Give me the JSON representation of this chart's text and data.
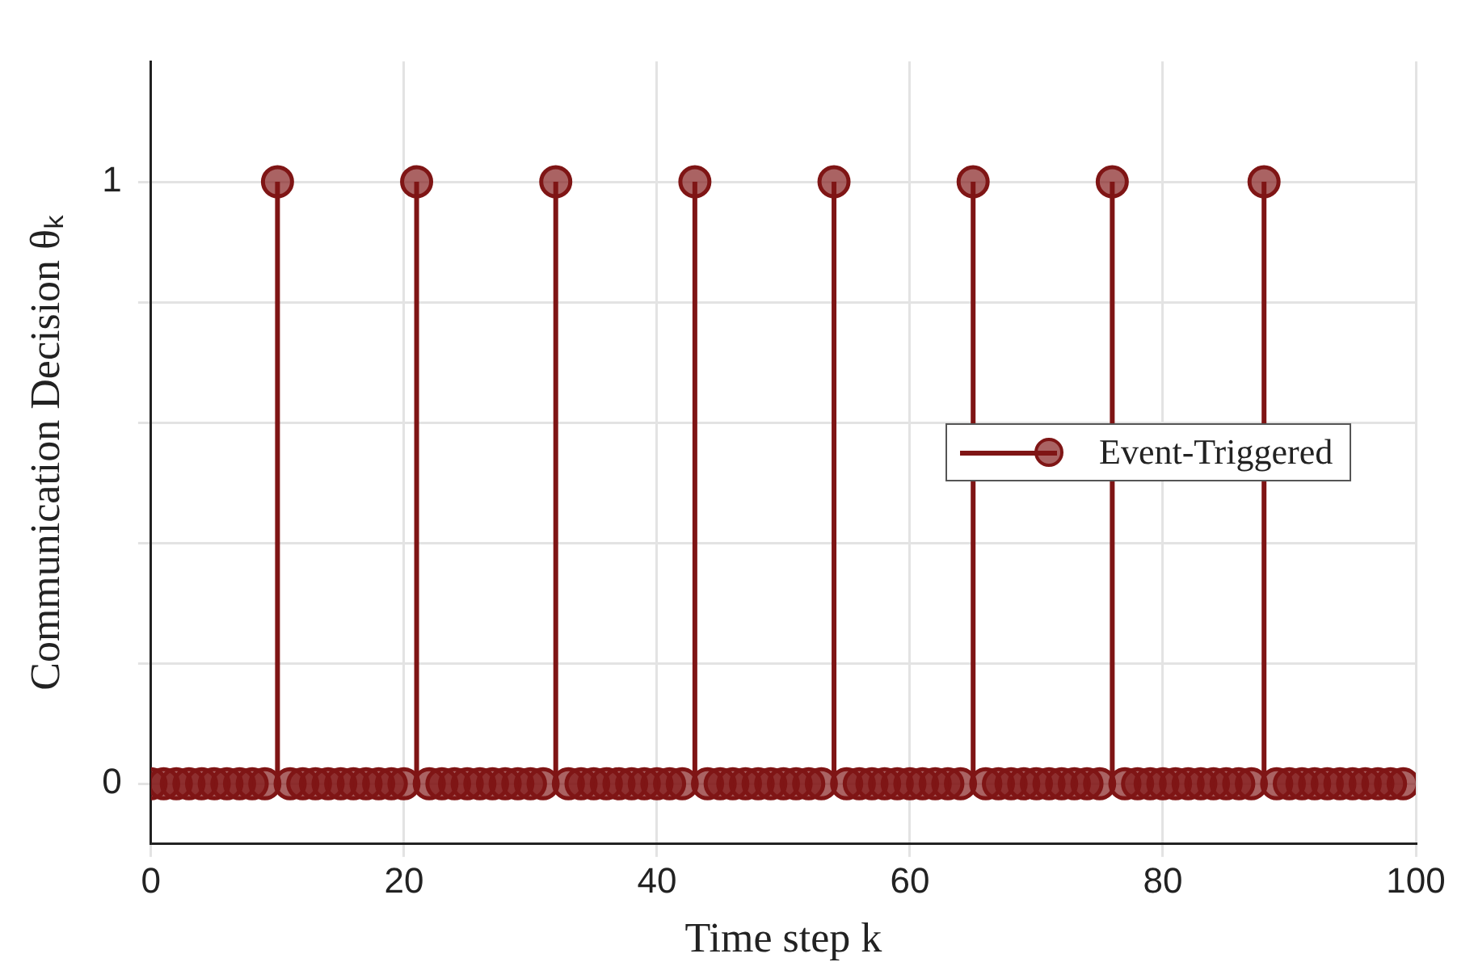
{
  "chart_data": {
    "type": "lollipop",
    "xlabel": "Time step k",
    "ylabel": "Communication Decision θₖ",
    "x": [
      0,
      1,
      2,
      3,
      4,
      5,
      6,
      7,
      8,
      9,
      10,
      11,
      12,
      13,
      14,
      15,
      16,
      17,
      18,
      19,
      20,
      21,
      22,
      23,
      24,
      25,
      26,
      27,
      28,
      29,
      30,
      31,
      32,
      33,
      34,
      35,
      36,
      37,
      38,
      39,
      40,
      41,
      42,
      43,
      44,
      45,
      46,
      47,
      48,
      49,
      50,
      51,
      52,
      53,
      54,
      55,
      56,
      57,
      58,
      59,
      60,
      61,
      62,
      63,
      64,
      65,
      66,
      67,
      68,
      69,
      70,
      71,
      72,
      73,
      74,
      75,
      76,
      77,
      78,
      79,
      80,
      81,
      82,
      83,
      84,
      85,
      86,
      87,
      88,
      89,
      90,
      91,
      92,
      93,
      94,
      95,
      96,
      97,
      98,
      99
    ],
    "series": [
      {
        "name": "Event-Triggered",
        "color": "#7f1515",
        "values": [
          0,
          0,
          0,
          0,
          0,
          0,
          0,
          0,
          0,
          0,
          1,
          0,
          0,
          0,
          0,
          0,
          0,
          0,
          0,
          0,
          0,
          1,
          0,
          0,
          0,
          0,
          0,
          0,
          0,
          0,
          0,
          0,
          1,
          0,
          0,
          0,
          0,
          0,
          0,
          0,
          0,
          0,
          0,
          1,
          0,
          0,
          0,
          0,
          0,
          0,
          0,
          0,
          0,
          0,
          1,
          0,
          0,
          0,
          0,
          0,
          0,
          0,
          0,
          0,
          0,
          1,
          0,
          0,
          0,
          0,
          0,
          0,
          0,
          0,
          0,
          0,
          1,
          0,
          0,
          0,
          0,
          0,
          0,
          0,
          0,
          0,
          0,
          0,
          1,
          0,
          0,
          0,
          0,
          0,
          0,
          0,
          0,
          0,
          0,
          0
        ]
      }
    ],
    "xlim": [
      0,
      100
    ],
    "xticks": [
      0,
      20,
      40,
      60,
      80,
      100
    ],
    "ylim": [
      -0.1,
      1.2
    ],
    "yticks": [
      0,
      {
        "value": 0.2,
        "label": null
      },
      {
        "value": 0.4,
        "label": null
      },
      {
        "value": 0.6,
        "label": null
      },
      {
        "value": 0.8,
        "label": null
      },
      1
    ],
    "grid": true,
    "legend": "right",
    "marker": "circle"
  }
}
